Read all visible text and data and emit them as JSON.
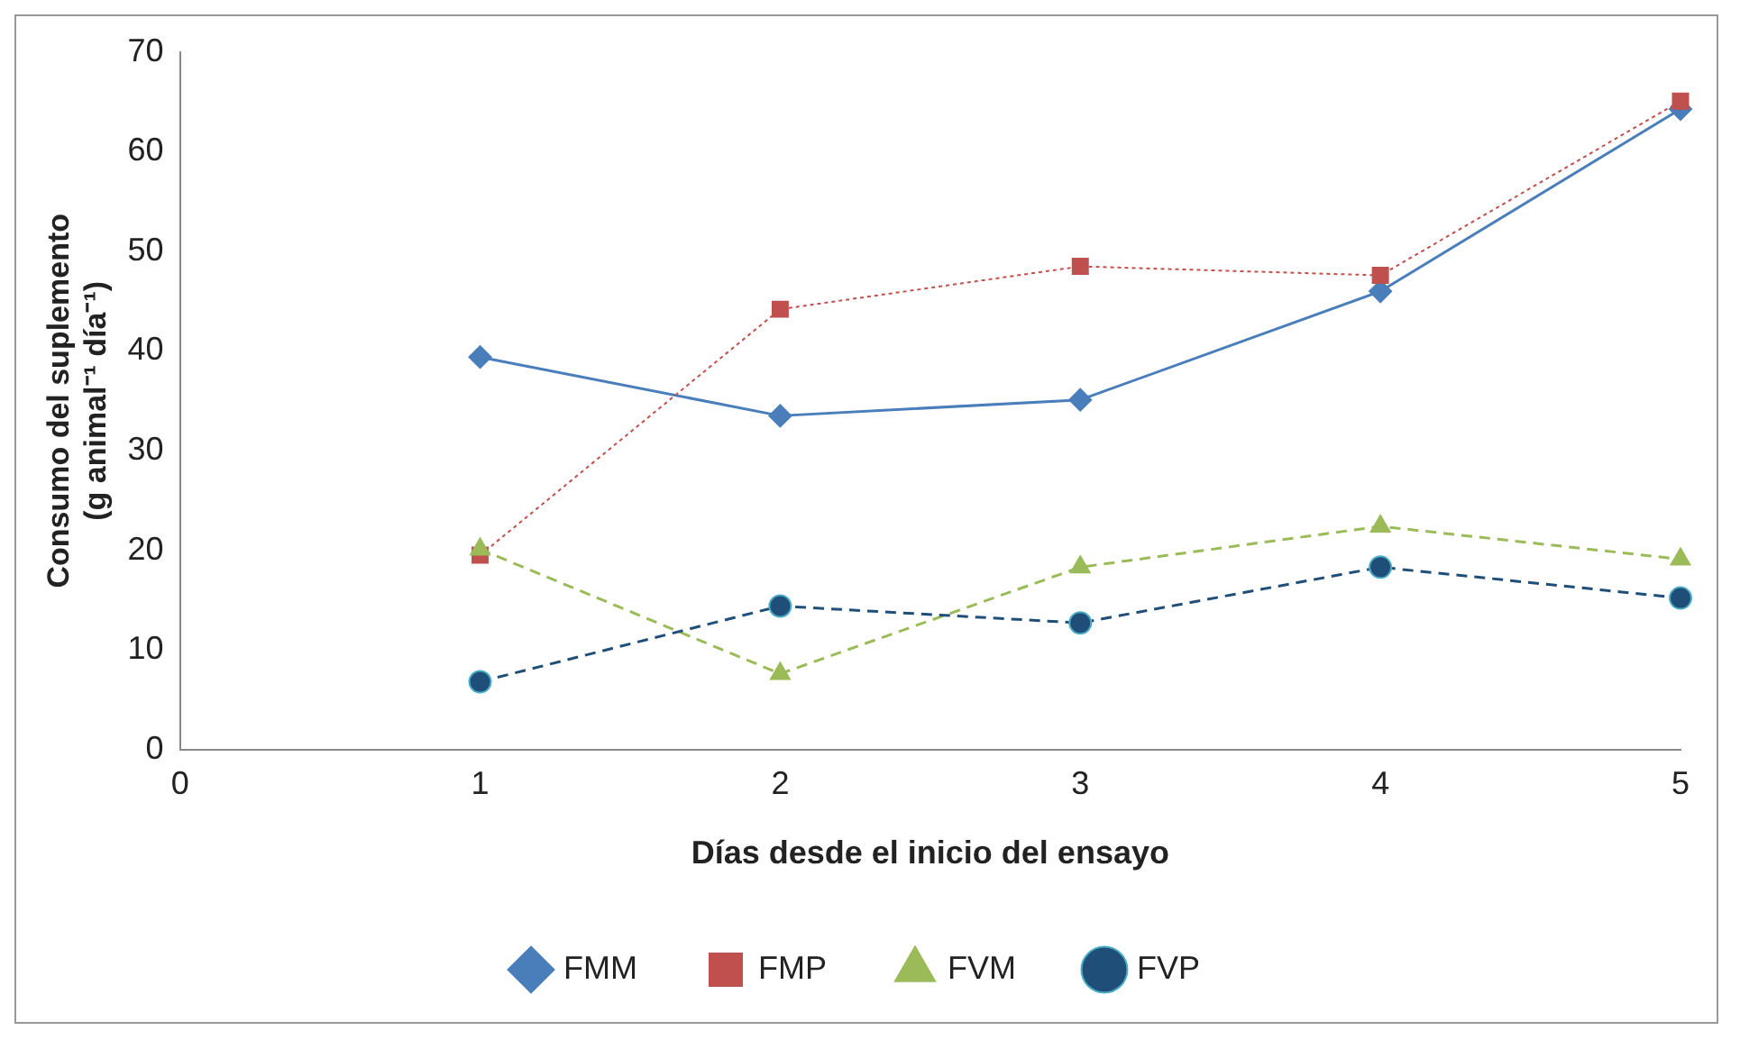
{
  "chart_data": {
    "type": "line",
    "xlabel": "Días desde el inicio del ensayo",
    "ylabel": "Consumo del suplemento\n(g animal⁻¹ día⁻¹)",
    "xlim": [
      0,
      5
    ],
    "xticks": [
      0,
      1,
      2,
      3,
      4,
      5
    ],
    "ylim": [
      0,
      70
    ],
    "yticks": [
      0,
      10,
      20,
      30,
      40,
      50,
      60,
      70
    ],
    "grid": false,
    "legend": "bottom",
    "x": [
      1,
      2,
      3,
      4,
      5
    ],
    "series": [
      {
        "name": "FMM",
        "color": "#4a7ebb",
        "marker": "diamond",
        "line_style": "solid",
        "values": [
          39.4,
          33.5,
          35.1,
          46,
          64.3
        ]
      },
      {
        "name": "FMP",
        "color": "#c0504d",
        "marker": "square",
        "line_style": "dotted",
        "values": [
          19.5,
          44.2,
          48.5,
          47.6,
          65.1
        ]
      },
      {
        "name": "FVM",
        "color": "#9bbb59",
        "marker": "triangle",
        "line_style": "dashed",
        "values": [
          20.1,
          7.6,
          18.3,
          22.4,
          19.1
        ]
      },
      {
        "name": "FVP",
        "color": "#1f4e79",
        "marker": "circle",
        "line_style": "dashed",
        "values": [
          6.8,
          14.4,
          12.7,
          18.3,
          15.2
        ]
      }
    ]
  }
}
